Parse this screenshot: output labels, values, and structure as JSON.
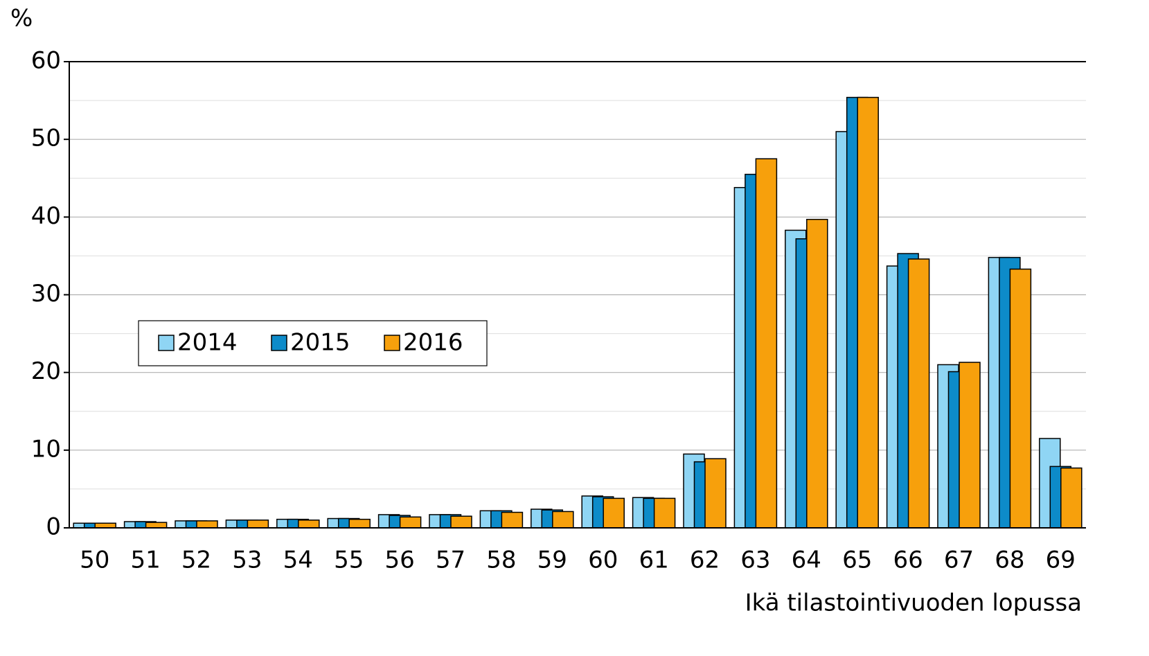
{
  "chart_data": {
    "type": "bar",
    "y_label": "%",
    "x_label": "Ikä tilastointivuoden lopussa",
    "categories": [
      "50",
      "51",
      "52",
      "53",
      "54",
      "55",
      "56",
      "57",
      "58",
      "59",
      "60",
      "61",
      "62",
      "63",
      "64",
      "65",
      "66",
      "67",
      "68",
      "69"
    ],
    "series": [
      {
        "name": "2014",
        "color": "#8fd5f4",
        "values": [
          0.6,
          0.8,
          0.9,
          1.0,
          1.1,
          1.2,
          1.7,
          1.7,
          2.2,
          2.4,
          4.1,
          3.9,
          9.5,
          43.8,
          38.3,
          51.0,
          33.7,
          21.0,
          34.8,
          11.5
        ]
      },
      {
        "name": "2015",
        "color": "#0d8bc9",
        "values": [
          0.6,
          0.8,
          0.9,
          1.0,
          1.1,
          1.2,
          1.6,
          1.7,
          2.2,
          2.3,
          4.0,
          3.8,
          8.5,
          45.5,
          37.2,
          55.4,
          35.3,
          20.1,
          34.8,
          7.9
        ]
      },
      {
        "name": "2016",
        "color": "#f7a00c",
        "values": [
          0.6,
          0.7,
          0.9,
          1.0,
          1.0,
          1.1,
          1.4,
          1.5,
          2.0,
          2.1,
          3.8,
          3.8,
          8.9,
          47.5,
          39.7,
          55.4,
          34.6,
          21.3,
          33.3,
          7.7
        ]
      }
    ],
    "ylim": [
      0,
      60
    ],
    "yticks": [
      0,
      10,
      20,
      30,
      40,
      50,
      60
    ],
    "grid": true
  }
}
